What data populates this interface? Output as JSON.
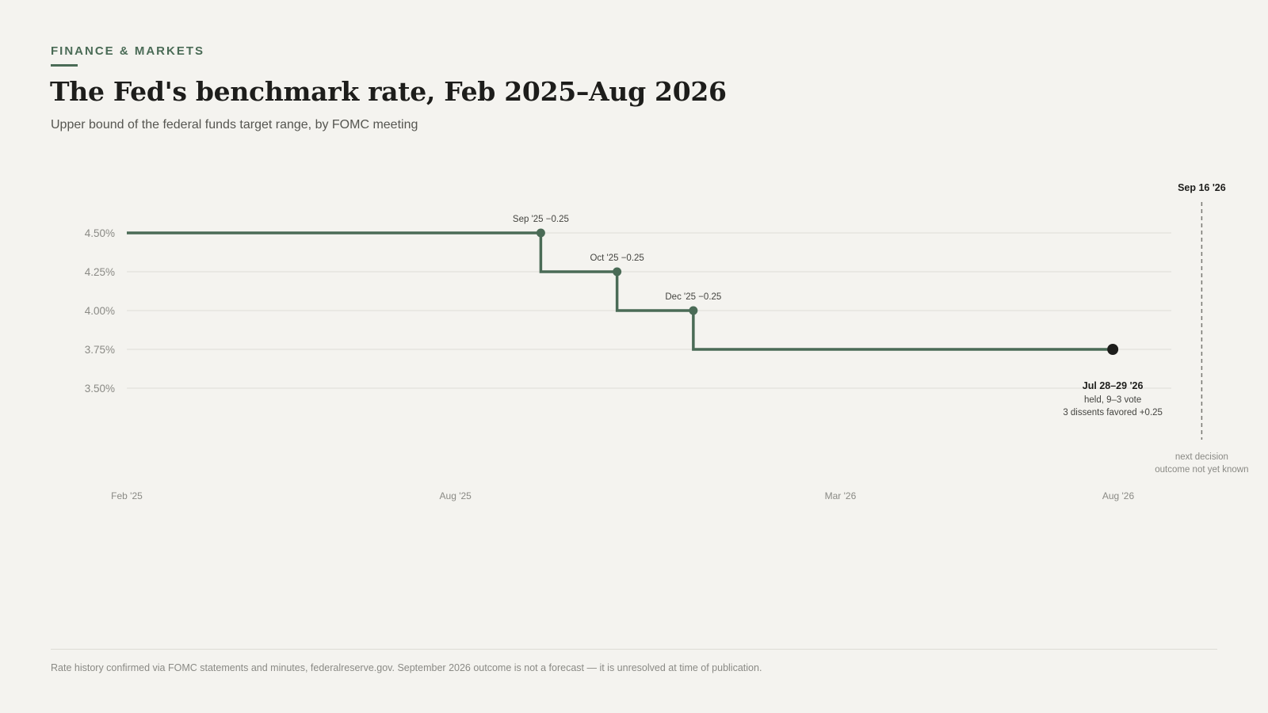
{
  "header": {
    "kicker": "FINANCE & MARKETS",
    "title": "The Fed's benchmark rate, Feb 2025–Aug 2026",
    "subtitle": "Upper bound of the federal funds target range, by FOMC meeting"
  },
  "colors": {
    "accent": "#4a6b56",
    "grid": "#e2e1dc",
    "axis_text": "#8a8a85",
    "latest_point": "#1d1d1b"
  },
  "chart_data": {
    "type": "line",
    "step": true,
    "title": "The Fed's benchmark rate, Feb 2025–Aug 2026",
    "subtitle": "Upper bound of the federal funds target range, by FOMC meeting",
    "xlabel": "",
    "ylabel": "",
    "xlim": [
      "2025-02-01",
      "2026-08-01"
    ],
    "ylim": [
      3.25,
      4.625
    ],
    "yticks": [
      4.5,
      4.25,
      4.0,
      3.75,
      3.5
    ],
    "ytick_labels": [
      "4.50%",
      "4.25%",
      "4.00%",
      "3.75%",
      "3.50%"
    ],
    "xticks": [
      {
        "date": "2025-02-01",
        "label": "Feb '25"
      },
      {
        "date": "2025-08-01",
        "label": "Aug '25"
      },
      {
        "date": "2026-03-01",
        "label": "Mar '26"
      },
      {
        "date": "2026-08-01",
        "label": "Aug '26"
      }
    ],
    "grid": true,
    "series": [
      {
        "values": [
          {
            "date": "2025-02-01",
            "rate": 4.5
          },
          {
            "date": "2025-09-17",
            "rate": 4.25
          },
          {
            "date": "2025-10-29",
            "rate": 4.0
          },
          {
            "date": "2025-12-10",
            "rate": 3.75
          },
          {
            "date": "2026-07-29",
            "rate": 3.75
          }
        ]
      }
    ],
    "change_points": [
      {
        "date": "2025-09-17",
        "rate": 4.5,
        "label": "Sep '25 −0.25"
      },
      {
        "date": "2025-10-29",
        "rate": 4.25,
        "label": "Oct '25 −0.25"
      },
      {
        "date": "2025-12-10",
        "rate": 4.0,
        "label": "Dec '25 −0.25"
      }
    ],
    "latest_point": {
      "date": "2026-07-29",
      "rate": 3.75,
      "title": "Jul 28–29 '26",
      "line1": "held, 9–3 vote",
      "line2": "3 dissents favored +0.25"
    },
    "next_decision": {
      "date": "2026-09-16",
      "label": "Sep 16 '26",
      "note1": "next decision",
      "note2": "outcome not yet known"
    }
  },
  "footer": {
    "source": "Rate history confirmed via FOMC statements and minutes, federalreserve.gov. September 2026 outcome is not a forecast — it is unresolved at time of publication."
  }
}
